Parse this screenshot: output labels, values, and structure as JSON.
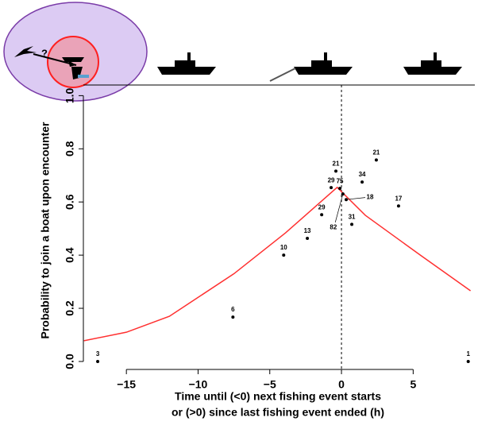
{
  "chart_data": {
    "type": "scatter",
    "xlabel": [
      "Time until (<0) next fishing event starts",
      "or (>0) since last fishing event ended (h)"
    ],
    "ylabel": "Probability to join a boat upon encounter",
    "annotation": "?",
    "x": [
      -17.0,
      -7.57,
      -4.03,
      -2.38,
      -1.38,
      -0.72,
      -0.39,
      -0.11,
      0.1,
      0.33,
      0.72,
      1.44,
      2.43,
      3.98,
      8.84
    ],
    "values": [
      0,
      0.167,
      0.4,
      0.463,
      0.552,
      0.654,
      0.716,
      0.651,
      0.63,
      0.609,
      0.516,
      0.675,
      0.758,
      0.585,
      0
    ],
    "n": [
      3,
      6,
      10,
      13,
      29,
      29,
      21,
      75,
      82,
      18,
      31,
      34,
      21,
      17,
      1
    ],
    "color": "#000000",
    "fit": {
      "color": "#ff3030",
      "x": [
        -17.96,
        -15,
        -12,
        -7.5,
        -3.9,
        -0.3,
        1.66,
        5.5,
        9
      ],
      "values": [
        0.078,
        0.11,
        0.17,
        0.33,
        0.484,
        0.655,
        0.55,
        0.4,
        0.266
      ]
    },
    "vline": 0,
    "xlim": [
      -18,
      9.3
    ],
    "ylim": [
      -0.03,
      1.04
    ],
    "xticks": [
      {
        "value": -15,
        "label": "−15"
      },
      {
        "value": -10,
        "label": "−10"
      },
      {
        "value": -5,
        "label": "−5"
      },
      0,
      5
    ],
    "yticks": [
      {
        "value": 0,
        "label": "0.0"
      },
      0.2,
      0.4,
      0.6,
      0.8,
      {
        "value": 1,
        "label": "1.0"
      }
    ]
  }
}
